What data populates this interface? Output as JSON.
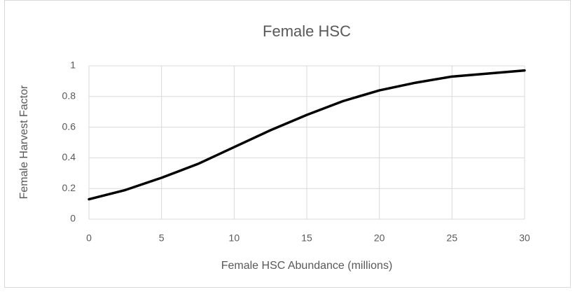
{
  "chart_data": {
    "type": "line",
    "title": "Female HSC",
    "x_label": "Female HSC Abundance (millions)",
    "y_label": "Female Harvest Factor",
    "x": [
      0,
      2.5,
      5,
      7.5,
      10,
      12.5,
      15,
      17.5,
      20,
      22.5,
      25,
      27.5,
      30
    ],
    "values": [
      0.13,
      0.19,
      0.27,
      0.36,
      0.47,
      0.58,
      0.68,
      0.77,
      0.84,
      0.89,
      0.93,
      0.95,
      0.97
    ],
    "color": "#000000",
    "xlim": [
      0,
      30
    ],
    "xticks": [
      0,
      5,
      10,
      15,
      20,
      25,
      30
    ],
    "ylim": [
      0,
      1
    ],
    "yticks": [
      0,
      0.2,
      0.4,
      0.6,
      0.8,
      1
    ],
    "grid": true
  }
}
